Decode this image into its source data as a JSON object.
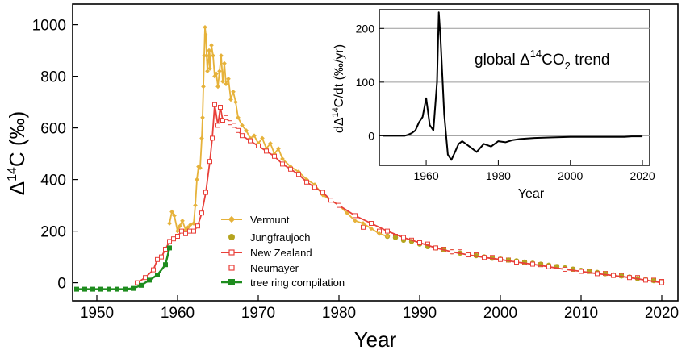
{
  "chart_data": [
    {
      "type": "line",
      "title": "",
      "xlabel": "Year",
      "ylabel": "Δ14C (‰)",
      "ylabel_parts": {
        "delta": "Δ",
        "sup": "14",
        "rest": "C (‰)"
      },
      "xlim": [
        1947,
        2022
      ],
      "ylim": [
        -70,
        1080
      ],
      "xticks": [
        1950,
        1960,
        1970,
        1980,
        1990,
        2000,
        2010,
        2020
      ],
      "yticks": [
        0,
        200,
        400,
        600,
        800,
        1000
      ],
      "grid": false,
      "legend_position": "center-left",
      "series": [
        {
          "name": "Vermunt",
          "color": "#e6b23a",
          "style": "line-diamond",
          "x": [
            1959.0,
            1959.3,
            1959.6,
            1960.0,
            1960.3,
            1960.6,
            1961.0,
            1961.3,
            1961.6,
            1962.0,
            1962.2,
            1962.4,
            1962.6,
            1962.8,
            1963.0,
            1963.1,
            1963.2,
            1963.3,
            1963.4,
            1963.5,
            1963.6,
            1963.7,
            1963.8,
            1963.9,
            1964.0,
            1964.2,
            1964.4,
            1964.6,
            1964.8,
            1965.0,
            1965.2,
            1965.4,
            1965.6,
            1965.8,
            1966.0,
            1966.3,
            1966.6,
            1966.9,
            1967.2,
            1967.5,
            1968.0,
            1968.5,
            1969.0,
            1969.5,
            1970.0,
            1970.5,
            1971.0,
            1971.5,
            1972.0,
            1972.5,
            1973.0,
            1974.0,
            1975.0,
            1976.0,
            1977.0,
            1978.0,
            1979.0,
            1980.0,
            1981.0,
            1982.0,
            1983.0,
            1984.0,
            1985.0,
            1986.0
          ],
          "values": [
            230,
            275,
            260,
            200,
            220,
            240,
            205,
            215,
            225,
            230,
            300,
            400,
            450,
            445,
            560,
            640,
            760,
            880,
            990,
            960,
            880,
            820,
            860,
            900,
            830,
            920,
            880,
            800,
            810,
            760,
            820,
            880,
            780,
            850,
            770,
            790,
            710,
            740,
            700,
            640,
            610,
            590,
            560,
            570,
            540,
            560,
            520,
            540,
            500,
            520,
            480,
            450,
            430,
            400,
            380,
            340,
            320,
            300,
            270,
            240,
            230,
            210,
            190,
            180
          ]
        },
        {
          "name": "Jungfraujoch",
          "color": "#b5a41f",
          "style": "dot",
          "x": [
            1986,
            1987,
            1988,
            1989,
            1990,
            1991,
            1992,
            1993,
            1994,
            1995,
            1996,
            1997,
            1998,
            1999,
            2000,
            2001,
            2002,
            2003,
            2004,
            2005,
            2006,
            2007,
            2008,
            2009,
            2010,
            2011,
            2012,
            2013,
            2014,
            2015,
            2016,
            2017,
            2018,
            2019,
            2020
          ],
          "values": [
            180,
            175,
            165,
            160,
            150,
            140,
            135,
            128,
            120,
            115,
            110,
            105,
            100,
            95,
            92,
            88,
            85,
            80,
            76,
            72,
            68,
            63,
            58,
            53,
            48,
            44,
            40,
            35,
            30,
            26,
            22,
            16,
            12,
            8,
            0
          ]
        },
        {
          "name": "New Zealand",
          "color": "#e8403a",
          "style": "line",
          "x": [
            1955.0,
            1956.0,
            1957.0,
            1957.5,
            1958.0,
            1958.5,
            1959.0,
            1959.5,
            1960.0,
            1960.5,
            1961.0,
            1961.5,
            1962.0,
            1962.5,
            1963.0,
            1963.5,
            1964.0,
            1964.3,
            1964.6,
            1965.0,
            1965.3,
            1965.6,
            1966.0,
            1966.5,
            1967.0,
            1967.5,
            1968.0,
            1969.0,
            1970.0,
            1971.0,
            1972.0,
            1973.0,
            1974.0,
            1975.0,
            1976.0,
            1977.0,
            1978.0,
            1979.0,
            1980.0,
            1982.0,
            1984.0,
            1986.0,
            1988.0,
            1990.0,
            1992.0,
            1994.0,
            1996.0,
            1998.0,
            2000.0,
            2002.0,
            2004.0,
            2006.0,
            2008.0,
            2010.0,
            2012.0,
            2014.0,
            2016.0,
            2018.0,
            2020.0
          ],
          "values": [
            0,
            20,
            50,
            90,
            100,
            130,
            160,
            170,
            180,
            200,
            190,
            200,
            200,
            220,
            270,
            350,
            470,
            560,
            690,
            610,
            680,
            630,
            640,
            620,
            610,
            590,
            570,
            550,
            530,
            510,
            490,
            460,
            440,
            420,
            390,
            370,
            350,
            320,
            300,
            260,
            230,
            200,
            175,
            155,
            135,
            120,
            108,
            98,
            90,
            80,
            72,
            62,
            52,
            44,
            35,
            28,
            20,
            10,
            0
          ]
        },
        {
          "name": "Neumayer",
          "color": "#e8403a",
          "style": "open-square",
          "x": [
            1983,
            1985,
            1987,
            1989,
            1991,
            1993,
            1995,
            1997,
            1999,
            2001,
            2003,
            2005,
            2007,
            2009,
            2011,
            2013,
            2015,
            2017,
            2019,
            2020
          ],
          "values": [
            215,
            200,
            180,
            165,
            150,
            130,
            120,
            108,
            98,
            88,
            80,
            70,
            62,
            52,
            44,
            36,
            28,
            20,
            10,
            5
          ]
        },
        {
          "name": "tree ring compilation",
          "color": "#1e8c1e",
          "style": "line-square",
          "x": [
            1947.5,
            1948.5,
            1949.5,
            1950.5,
            1951.5,
            1952.5,
            1953.5,
            1954.5,
            1955.5,
            1956.5,
            1957.5,
            1958.5,
            1959.0
          ],
          "values": [
            -25,
            -25,
            -25,
            -25,
            -25,
            -25,
            -25,
            -22,
            -10,
            10,
            30,
            70,
            135
          ]
        }
      ]
    },
    {
      "type": "line",
      "title": "global Δ14CO2 trend",
      "title_parts": {
        "pre": "global Δ",
        "sup": "14",
        "mid": "CO",
        "sub": "2",
        "post": " trend"
      },
      "xlabel": "Year",
      "ylabel": "dΔ14C/dt (‰/yr)",
      "ylabel_parts": {
        "pre": "dΔ",
        "sup": "14",
        "post": "C/dt (‰/yr)"
      },
      "xlim": [
        1947,
        2022
      ],
      "ylim": [
        -55,
        235
      ],
      "xticks": [
        1960,
        1980,
        2000,
        2020
      ],
      "yticks": [
        0,
        100,
        200
      ],
      "grid": true,
      "series": [
        {
          "name": "global trend",
          "color": "#000000",
          "x": [
            1948,
            1950,
            1952,
            1954,
            1955,
            1956,
            1957,
            1958,
            1959,
            1960,
            1961,
            1962,
            1963,
            1963.5,
            1964,
            1965,
            1966,
            1967,
            1968,
            1969,
            1970,
            1972,
            1974,
            1976,
            1978,
            1980,
            1982,
            1984,
            1986,
            1988,
            1990,
            1995,
            2000,
            2005,
            2010,
            2015,
            2017,
            2020
          ],
          "values": [
            0,
            0,
            0,
            0,
            2,
            5,
            10,
            25,
            35,
            70,
            20,
            10,
            100,
            230,
            180,
            40,
            -35,
            -45,
            -30,
            -15,
            -10,
            -20,
            -30,
            -15,
            -20,
            -10,
            -12,
            -8,
            -6,
            -5,
            -4,
            -3,
            -2,
            -2,
            -2,
            -2,
            -1,
            -1
          ]
        }
      ]
    }
  ]
}
